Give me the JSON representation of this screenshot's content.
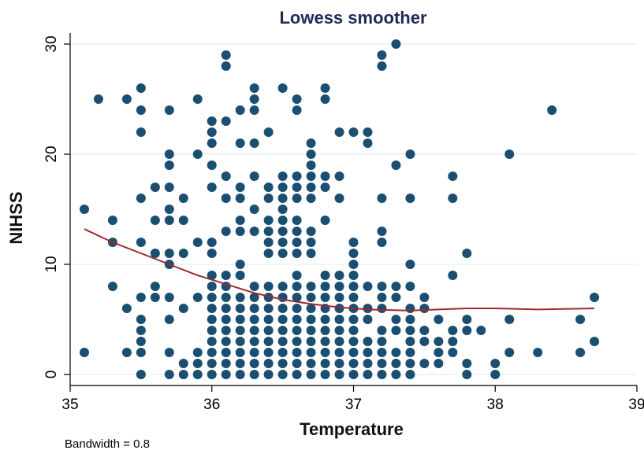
{
  "chart_data": {
    "type": "scatter",
    "title": "Lowess smoother",
    "xlabel": "Temperature",
    "ylabel": "NIHSS",
    "note": "Bandwidth = 0.8",
    "xlim": [
      35,
      39
    ],
    "ylim": [
      -1,
      31
    ],
    "xticks": [
      "35",
      "36",
      "37",
      "38",
      "39"
    ],
    "yticks": [
      "0",
      "10",
      "20",
      "30"
    ],
    "grid": true,
    "colors": {
      "points": "#1b4f72",
      "smoother": "#a0282d",
      "title": "#1f2a5a",
      "grid": "#e3eef2"
    },
    "points": [
      [
        35.1,
        15
      ],
      [
        35.1,
        2
      ],
      [
        35.2,
        25
      ],
      [
        35.3,
        14
      ],
      [
        35.3,
        12
      ],
      [
        35.3,
        8
      ],
      [
        35.4,
        25
      ],
      [
        35.4,
        6
      ],
      [
        35.4,
        2
      ],
      [
        35.5,
        26
      ],
      [
        35.5,
        24
      ],
      [
        35.5,
        22
      ],
      [
        35.5,
        16
      ],
      [
        35.5,
        12
      ],
      [
        35.5,
        7
      ],
      [
        35.5,
        5
      ],
      [
        35.5,
        4
      ],
      [
        35.5,
        3
      ],
      [
        35.5,
        2
      ],
      [
        35.5,
        0
      ],
      [
        35.6,
        17
      ],
      [
        35.6,
        14
      ],
      [
        35.6,
        11
      ],
      [
        35.6,
        8
      ],
      [
        35.6,
        7
      ],
      [
        35.7,
        24
      ],
      [
        35.7,
        20
      ],
      [
        35.7,
        19
      ],
      [
        35.7,
        17
      ],
      [
        35.7,
        15
      ],
      [
        35.7,
        14
      ],
      [
        35.7,
        11
      ],
      [
        35.7,
        10
      ],
      [
        35.7,
        7
      ],
      [
        35.7,
        5
      ],
      [
        35.7,
        2
      ],
      [
        35.7,
        0
      ],
      [
        35.8,
        16
      ],
      [
        35.8,
        14
      ],
      [
        35.8,
        11
      ],
      [
        35.8,
        6
      ],
      [
        35.8,
        1
      ],
      [
        35.8,
        0
      ],
      [
        35.9,
        25
      ],
      [
        35.9,
        20
      ],
      [
        35.9,
        12
      ],
      [
        35.9,
        7
      ],
      [
        35.9,
        2
      ],
      [
        35.9,
        1
      ],
      [
        35.9,
        0
      ],
      [
        36.0,
        23
      ],
      [
        36.0,
        22
      ],
      [
        36.0,
        21
      ],
      [
        36.0,
        19
      ],
      [
        36.0,
        17
      ],
      [
        36.0,
        12
      ],
      [
        36.0,
        11
      ],
      [
        36.0,
        9
      ],
      [
        36.0,
        8
      ],
      [
        36.0,
        7
      ],
      [
        36.0,
        6
      ],
      [
        36.0,
        5
      ],
      [
        36.0,
        4
      ],
      [
        36.0,
        3
      ],
      [
        36.0,
        2
      ],
      [
        36.0,
        1
      ],
      [
        36.0,
        0
      ],
      [
        36.1,
        29
      ],
      [
        36.1,
        28
      ],
      [
        36.1,
        23
      ],
      [
        36.1,
        18
      ],
      [
        36.1,
        16
      ],
      [
        36.1,
        13
      ],
      [
        36.1,
        9
      ],
      [
        36.1,
        8
      ],
      [
        36.1,
        7
      ],
      [
        36.1,
        6
      ],
      [
        36.1,
        5
      ],
      [
        36.1,
        4
      ],
      [
        36.1,
        3
      ],
      [
        36.1,
        2
      ],
      [
        36.1,
        1
      ],
      [
        36.1,
        0
      ],
      [
        36.2,
        24
      ],
      [
        36.2,
        21
      ],
      [
        36.2,
        17
      ],
      [
        36.2,
        16
      ],
      [
        36.2,
        14
      ],
      [
        36.2,
        13
      ],
      [
        36.2,
        10
      ],
      [
        36.2,
        9
      ],
      [
        36.2,
        7
      ],
      [
        36.2,
        6
      ],
      [
        36.2,
        5
      ],
      [
        36.2,
        4
      ],
      [
        36.2,
        3
      ],
      [
        36.2,
        2
      ],
      [
        36.2,
        1
      ],
      [
        36.2,
        0
      ],
      [
        36.3,
        26
      ],
      [
        36.3,
        25
      ],
      [
        36.3,
        24
      ],
      [
        36.3,
        21
      ],
      [
        36.3,
        18
      ],
      [
        36.3,
        15
      ],
      [
        36.3,
        13
      ],
      [
        36.3,
        8
      ],
      [
        36.3,
        7
      ],
      [
        36.3,
        6
      ],
      [
        36.3,
        5
      ],
      [
        36.3,
        4
      ],
      [
        36.3,
        3
      ],
      [
        36.3,
        2
      ],
      [
        36.3,
        1
      ],
      [
        36.3,
        0
      ],
      [
        36.4,
        22
      ],
      [
        36.4,
        17
      ],
      [
        36.4,
        16
      ],
      [
        36.4,
        14
      ],
      [
        36.4,
        13
      ],
      [
        36.4,
        12
      ],
      [
        36.4,
        11
      ],
      [
        36.4,
        8
      ],
      [
        36.4,
        7
      ],
      [
        36.4,
        6
      ],
      [
        36.4,
        5
      ],
      [
        36.4,
        4
      ],
      [
        36.4,
        3
      ],
      [
        36.4,
        2
      ],
      [
        36.4,
        1
      ],
      [
        36.4,
        0
      ],
      [
        36.5,
        26
      ],
      [
        36.5,
        18
      ],
      [
        36.5,
        17
      ],
      [
        36.5,
        16
      ],
      [
        36.5,
        15
      ],
      [
        36.5,
        14
      ],
      [
        36.5,
        13
      ],
      [
        36.5,
        12
      ],
      [
        36.5,
        11
      ],
      [
        36.5,
        8
      ],
      [
        36.5,
        7
      ],
      [
        36.5,
        6
      ],
      [
        36.5,
        5
      ],
      [
        36.5,
        4
      ],
      [
        36.5,
        3
      ],
      [
        36.5,
        2
      ],
      [
        36.5,
        1
      ],
      [
        36.5,
        0
      ],
      [
        36.6,
        25
      ],
      [
        36.6,
        24
      ],
      [
        36.6,
        18
      ],
      [
        36.6,
        17
      ],
      [
        36.6,
        16
      ],
      [
        36.6,
        14
      ],
      [
        36.6,
        13
      ],
      [
        36.6,
        12
      ],
      [
        36.6,
        11
      ],
      [
        36.6,
        9
      ],
      [
        36.6,
        8
      ],
      [
        36.6,
        7
      ],
      [
        36.6,
        6
      ],
      [
        36.6,
        5
      ],
      [
        36.6,
        4
      ],
      [
        36.6,
        3
      ],
      [
        36.6,
        2
      ],
      [
        36.6,
        1
      ],
      [
        36.6,
        0
      ],
      [
        36.7,
        21
      ],
      [
        36.7,
        20
      ],
      [
        36.7,
        19
      ],
      [
        36.7,
        18
      ],
      [
        36.7,
        17
      ],
      [
        36.7,
        16
      ],
      [
        36.7,
        13
      ],
      [
        36.7,
        12
      ],
      [
        36.7,
        11
      ],
      [
        36.7,
        8
      ],
      [
        36.7,
        7
      ],
      [
        36.7,
        6
      ],
      [
        36.7,
        5
      ],
      [
        36.7,
        4
      ],
      [
        36.7,
        3
      ],
      [
        36.7,
        2
      ],
      [
        36.7,
        1
      ],
      [
        36.7,
        0
      ],
      [
        36.8,
        26
      ],
      [
        36.8,
        25
      ],
      [
        36.8,
        18
      ],
      [
        36.8,
        17
      ],
      [
        36.8,
        14
      ],
      [
        36.8,
        9
      ],
      [
        36.8,
        8
      ],
      [
        36.8,
        7
      ],
      [
        36.8,
        6
      ],
      [
        36.8,
        5
      ],
      [
        36.8,
        4
      ],
      [
        36.8,
        3
      ],
      [
        36.8,
        2
      ],
      [
        36.8,
        1
      ],
      [
        36.8,
        0
      ],
      [
        36.9,
        22
      ],
      [
        36.9,
        18
      ],
      [
        36.9,
        16
      ],
      [
        36.9,
        9
      ],
      [
        36.9,
        8
      ],
      [
        36.9,
        7
      ],
      [
        36.9,
        6
      ],
      [
        36.9,
        5
      ],
      [
        36.9,
        4
      ],
      [
        36.9,
        3
      ],
      [
        36.9,
        2
      ],
      [
        36.9,
        1
      ],
      [
        36.9,
        0
      ],
      [
        37.0,
        22
      ],
      [
        37.0,
        12
      ],
      [
        37.0,
        11
      ],
      [
        37.0,
        10
      ],
      [
        37.0,
        9
      ],
      [
        37.0,
        8
      ],
      [
        37.0,
        7
      ],
      [
        37.0,
        6
      ],
      [
        37.0,
        5
      ],
      [
        37.0,
        4
      ],
      [
        37.0,
        3
      ],
      [
        37.0,
        2
      ],
      [
        37.0,
        1
      ],
      [
        37.0,
        0
      ],
      [
        37.1,
        22
      ],
      [
        37.1,
        21
      ],
      [
        37.1,
        8
      ],
      [
        37.1,
        6
      ],
      [
        37.1,
        5
      ],
      [
        37.1,
        3
      ],
      [
        37.1,
        2
      ],
      [
        37.1,
        1
      ],
      [
        37.1,
        0
      ],
      [
        37.2,
        29
      ],
      [
        37.2,
        28
      ],
      [
        37.2,
        16
      ],
      [
        37.2,
        13
      ],
      [
        37.2,
        12
      ],
      [
        37.2,
        8
      ],
      [
        37.2,
        7
      ],
      [
        37.2,
        6
      ],
      [
        37.2,
        4
      ],
      [
        37.2,
        3
      ],
      [
        37.2,
        2
      ],
      [
        37.2,
        1
      ],
      [
        37.2,
        0
      ],
      [
        37.3,
        30
      ],
      [
        37.3,
        19
      ],
      [
        37.3,
        8
      ],
      [
        37.3,
        7
      ],
      [
        37.3,
        5
      ],
      [
        37.3,
        4
      ],
      [
        37.3,
        2
      ],
      [
        37.3,
        1
      ],
      [
        37.3,
        0
      ],
      [
        37.4,
        20
      ],
      [
        37.4,
        16
      ],
      [
        37.4,
        10
      ],
      [
        37.4,
        8
      ],
      [
        37.4,
        6
      ],
      [
        37.4,
        5
      ],
      [
        37.4,
        4
      ],
      [
        37.4,
        3
      ],
      [
        37.4,
        2
      ],
      [
        37.4,
        1
      ],
      [
        37.4,
        0
      ],
      [
        37.5,
        7
      ],
      [
        37.5,
        6
      ],
      [
        37.5,
        4
      ],
      [
        37.5,
        3
      ],
      [
        37.5,
        1
      ],
      [
        37.6,
        5
      ],
      [
        37.6,
        3
      ],
      [
        37.6,
        2
      ],
      [
        37.6,
        1
      ],
      [
        37.7,
        18
      ],
      [
        37.7,
        16
      ],
      [
        37.7,
        9
      ],
      [
        37.7,
        4
      ],
      [
        37.7,
        3
      ],
      [
        37.7,
        2
      ],
      [
        37.8,
        11
      ],
      [
        37.8,
        5
      ],
      [
        37.8,
        4
      ],
      [
        37.8,
        1
      ],
      [
        37.8,
        0
      ],
      [
        37.9,
        4
      ],
      [
        38.0,
        1
      ],
      [
        38.0,
        0
      ],
      [
        38.1,
        20
      ],
      [
        38.1,
        5
      ],
      [
        38.1,
        2
      ],
      [
        38.3,
        2
      ],
      [
        38.4,
        24
      ],
      [
        38.6,
        5
      ],
      [
        38.6,
        2
      ],
      [
        38.7,
        7
      ],
      [
        38.7,
        3
      ]
    ],
    "smoother": [
      [
        35.1,
        13.2
      ],
      [
        35.3,
        12.0
      ],
      [
        35.5,
        11.0
      ],
      [
        35.7,
        10.0
      ],
      [
        35.9,
        9.0
      ],
      [
        36.1,
        8.2
      ],
      [
        36.3,
        7.4
      ],
      [
        36.5,
        6.8
      ],
      [
        36.7,
        6.4
      ],
      [
        36.9,
        6.1
      ],
      [
        37.1,
        5.9
      ],
      [
        37.4,
        5.8
      ],
      [
        37.6,
        5.9
      ],
      [
        37.8,
        6.0
      ],
      [
        38.0,
        6.0
      ],
      [
        38.3,
        5.9
      ],
      [
        38.7,
        6.0
      ]
    ]
  }
}
